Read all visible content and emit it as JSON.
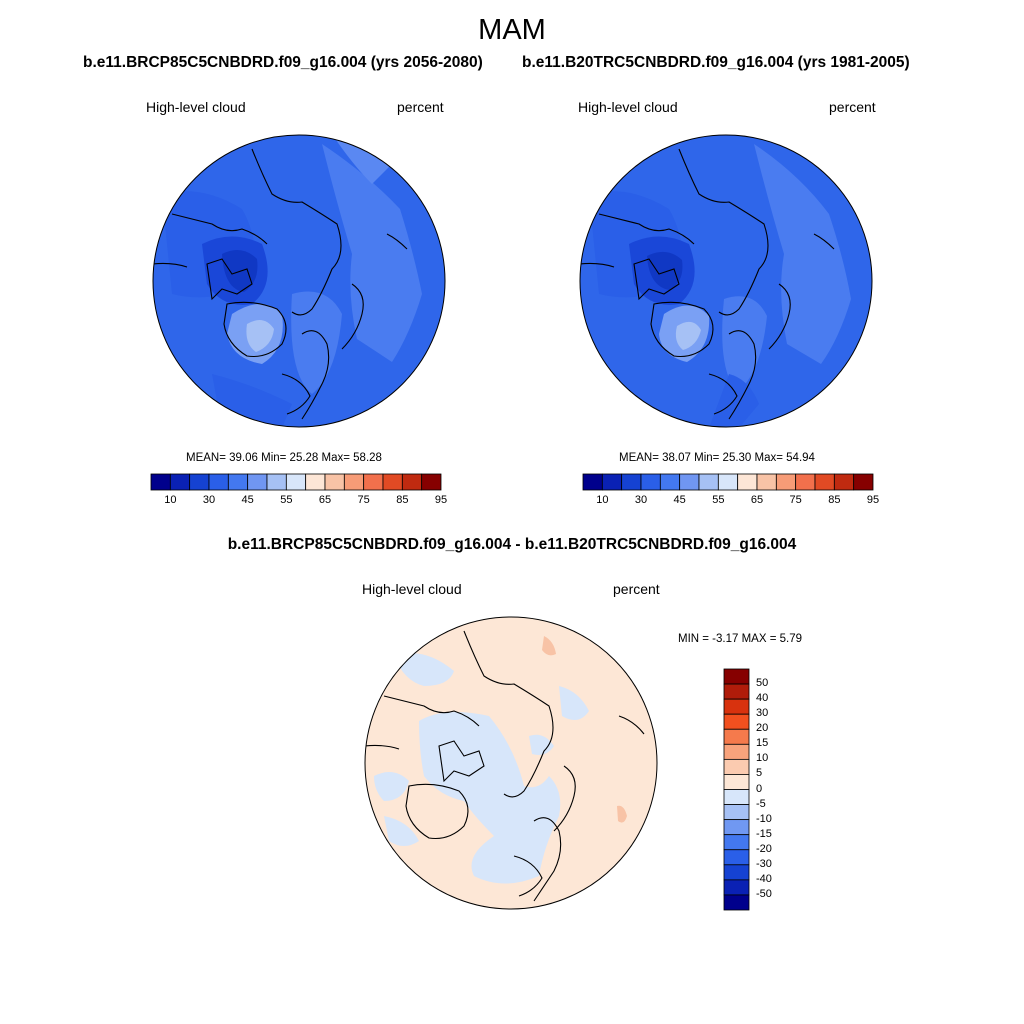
{
  "season": "MAM",
  "panels": [
    {
      "title": "b.e11.BRCP85C5CNBDRD.f09_g16.004 (yrs 2056-2080)",
      "variable": "High-level cloud",
      "units": "percent",
      "stats": "MEAN=  39.06  Min=  25.28  Max=  58.28"
    },
    {
      "title": "b.e11.B20TRC5CNBDRD.f09_g16.004 (yrs 1981-2005)",
      "variable": "High-level cloud",
      "units": "percent",
      "stats": "MEAN=  38.07  Min=  25.30  Max=  54.94"
    }
  ],
  "abs_colorbar": {
    "labels": [
      "10",
      "30",
      "45",
      "55",
      "65",
      "75",
      "85",
      "95"
    ],
    "colors": [
      "#00008c",
      "#0a21b4",
      "#1542d2",
      "#2a5fe8",
      "#4378f0",
      "#7096f2",
      "#a6c1f5",
      "#d8e6fa",
      "#fde6d6",
      "#f8c3a6",
      "#f79c77",
      "#f2704c",
      "#e14a24",
      "#c02a10",
      "#860000"
    ]
  },
  "diff": {
    "title": "b.e11.BRCP85C5CNBDRD.f09_g16.004 - b.e11.B20TRC5CNBDRD.f09_g16.004",
    "variable": "High-level cloud",
    "units": "percent",
    "stats": "MIN =  -3.17 MAX =   5.79",
    "colorbar_labels": [
      "50",
      "40",
      "30",
      "20",
      "15",
      "10",
      "5",
      "0",
      "-5",
      "-10",
      "-15",
      "-20",
      "-30",
      "-40",
      "-50"
    ],
    "colorbar_colors": [
      "#860000",
      "#b01c0a",
      "#d8320e",
      "#f2501f",
      "#f57a4c",
      "#f8a37c",
      "#fbcbb0",
      "#fde7d6",
      "#d7e6fa",
      "#a6c1f5",
      "#7098f2",
      "#4378f0",
      "#2a5fe8",
      "#1542d2",
      "#0a21b4",
      "#00008c"
    ]
  }
}
